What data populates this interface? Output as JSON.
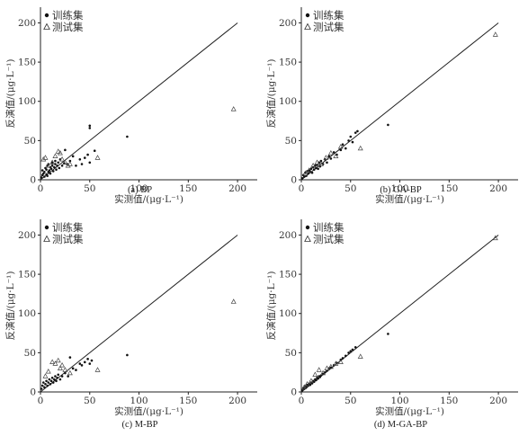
{
  "chart_data": [
    {
      "type": "scatter",
      "caption": "(a) BP",
      "xlabel": "实测值/(μg·L⁻¹)",
      "ylabel": "反演值/(μg·L⁻¹)",
      "xlim": [
        0,
        220
      ],
      "ylim": [
        0,
        220
      ],
      "xticks": [
        "0",
        "50",
        "100",
        "150",
        "200"
      ],
      "yticks": [
        "0",
        "50",
        "100",
        "150",
        "200"
      ],
      "reference_line": [
        [
          0,
          0
        ],
        [
          200,
          200
        ]
      ],
      "legend": {
        "position": "top-left",
        "entries": [
          "训练集",
          "测试集"
        ]
      },
      "series": [
        {
          "name": "训练集",
          "marker": "dot",
          "points": [
            [
              1,
              3
            ],
            [
              2,
              6
            ],
            [
              2,
              12
            ],
            [
              3,
              8
            ],
            [
              4,
              4
            ],
            [
              4,
              10
            ],
            [
              5,
              15
            ],
            [
              6,
              7
            ],
            [
              6,
              13
            ],
            [
              7,
              5
            ],
            [
              7,
              18
            ],
            [
              8,
              10
            ],
            [
              8,
              20
            ],
            [
              9,
              12
            ],
            [
              10,
              8
            ],
            [
              10,
              16
            ],
            [
              11,
              14
            ],
            [
              12,
              18
            ],
            [
              12,
              22
            ],
            [
              13,
              11
            ],
            [
              14,
              16
            ],
            [
              15,
              20
            ],
            [
              15,
              24
            ],
            [
              16,
              13
            ],
            [
              17,
              18
            ],
            [
              18,
              22
            ],
            [
              19,
              15
            ],
            [
              20,
              26
            ],
            [
              22,
              18
            ],
            [
              24,
              21
            ],
            [
              25,
              38
            ],
            [
              27,
              20
            ],
            [
              30,
              24
            ],
            [
              33,
              30
            ],
            [
              36,
              18
            ],
            [
              40,
              26
            ],
            [
              42,
              20
            ],
            [
              45,
              28
            ],
            [
              48,
              32
            ],
            [
              50,
              22
            ],
            [
              50,
              66
            ],
            [
              50,
              69
            ],
            [
              55,
              37
            ],
            [
              88,
              55
            ]
          ]
        },
        {
          "name": "测试集",
          "marker": "triangle",
          "points": [
            [
              3,
              26
            ],
            [
              5,
              28
            ],
            [
              8,
              18
            ],
            [
              12,
              22
            ],
            [
              15,
              30
            ],
            [
              18,
              36
            ],
            [
              20,
              34
            ],
            [
              22,
              26
            ],
            [
              25,
              22
            ],
            [
              28,
              18
            ],
            [
              30,
              20
            ],
            [
              58,
              28
            ],
            [
              196,
              90
            ]
          ]
        }
      ]
    },
    {
      "type": "scatter",
      "caption": "(b) GA-BP",
      "xlabel": "实测值/(μg·L⁻¹)",
      "ylabel": "反演值/(μg·L⁻¹)",
      "xlim": [
        0,
        220
      ],
      "ylim": [
        0,
        220
      ],
      "xticks": [
        "0",
        "50",
        "100",
        "150",
        "200"
      ],
      "yticks": [
        "0",
        "50",
        "100",
        "150",
        "200"
      ],
      "reference_line": [
        [
          0,
          0
        ],
        [
          200,
          200
        ]
      ],
      "legend": {
        "position": "top-left",
        "entries": [
          "训练集",
          "测试集"
        ]
      },
      "series": [
        {
          "name": "训练集",
          "marker": "dot",
          "points": [
            [
              1,
              2
            ],
            [
              2,
              6
            ],
            [
              3,
              4
            ],
            [
              4,
              9
            ],
            [
              5,
              5
            ],
            [
              6,
              11
            ],
            [
              7,
              8
            ],
            [
              8,
              12
            ],
            [
              9,
              10
            ],
            [
              10,
              14
            ],
            [
              11,
              9
            ],
            [
              12,
              16
            ],
            [
              13,
              13
            ],
            [
              14,
              18
            ],
            [
              15,
              15
            ],
            [
              16,
              19
            ],
            [
              17,
              14
            ],
            [
              18,
              22
            ],
            [
              19,
              17
            ],
            [
              20,
              24
            ],
            [
              22,
              20
            ],
            [
              24,
              26
            ],
            [
              26,
              22
            ],
            [
              28,
              30
            ],
            [
              30,
              27
            ],
            [
              33,
              35
            ],
            [
              36,
              32
            ],
            [
              40,
              38
            ],
            [
              42,
              45
            ],
            [
              45,
              40
            ],
            [
              48,
              50
            ],
            [
              50,
              55
            ],
            [
              52,
              48
            ],
            [
              55,
              60
            ],
            [
              57,
              62
            ],
            [
              88,
              70
            ]
          ]
        },
        {
          "name": "测试集",
          "marker": "triangle",
          "points": [
            [
              4,
              8
            ],
            [
              8,
              12
            ],
            [
              12,
              18
            ],
            [
              16,
              22
            ],
            [
              20,
              20
            ],
            [
              25,
              28
            ],
            [
              30,
              34
            ],
            [
              35,
              30
            ],
            [
              40,
              42
            ],
            [
              60,
              40
            ],
            [
              197,
              185
            ]
          ]
        }
      ]
    },
    {
      "type": "scatter",
      "caption": "(c) M-BP",
      "xlabel": "实测值/(μg·L⁻¹)",
      "ylabel": "反演值/(μg·L⁻¹)",
      "xlim": [
        0,
        220
      ],
      "ylim": [
        0,
        220
      ],
      "xticks": [
        "0",
        "50",
        "100",
        "150",
        "200"
      ],
      "yticks": [
        "0",
        "50",
        "100",
        "150",
        "200"
      ],
      "reference_line": [
        [
          0,
          0
        ],
        [
          200,
          200
        ]
      ],
      "legend": {
        "position": "top-left",
        "entries": [
          "训练集",
          "测试集"
        ]
      },
      "series": [
        {
          "name": "训练集",
          "marker": "dot",
          "points": [
            [
              1,
              4
            ],
            [
              2,
              8
            ],
            [
              3,
              12
            ],
            [
              4,
              6
            ],
            [
              5,
              10
            ],
            [
              6,
              14
            ],
            [
              7,
              8
            ],
            [
              8,
              12
            ],
            [
              9,
              16
            ],
            [
              10,
              10
            ],
            [
              11,
              14
            ],
            [
              12,
              18
            ],
            [
              13,
              12
            ],
            [
              14,
              16
            ],
            [
              15,
              20
            ],
            [
              16,
              14
            ],
            [
              17,
              18
            ],
            [
              18,
              22
            ],
            [
              20,
              16
            ],
            [
              22,
              20
            ],
            [
              25,
              24
            ],
            [
              28,
              20
            ],
            [
              30,
              44
            ],
            [
              33,
              30
            ],
            [
              36,
              28
            ],
            [
              40,
              36
            ],
            [
              42,
              34
            ],
            [
              45,
              38
            ],
            [
              48,
              42
            ],
            [
              50,
              36
            ],
            [
              52,
              40
            ],
            [
              88,
              47
            ]
          ]
        },
        {
          "name": "测试集",
          "marker": "triangle",
          "points": [
            [
              5,
              20
            ],
            [
              8,
              26
            ],
            [
              12,
              38
            ],
            [
              15,
              36
            ],
            [
              18,
              40
            ],
            [
              20,
              30
            ],
            [
              22,
              34
            ],
            [
              25,
              28
            ],
            [
              30,
              24
            ],
            [
              58,
              28
            ],
            [
              196,
              115
            ]
          ]
        }
      ]
    },
    {
      "type": "scatter",
      "caption": "(d) M-GA-BP",
      "xlabel": "实测值/(μg·L⁻¹)",
      "ylabel": "反演值/(μg·L⁻¹)",
      "xlim": [
        0,
        220
      ],
      "ylim": [
        0,
        220
      ],
      "xticks": [
        "0",
        "50",
        "100",
        "150",
        "200"
      ],
      "yticks": [
        "0",
        "50",
        "100",
        "150",
        "200"
      ],
      "reference_line": [
        [
          0,
          0
        ],
        [
          200,
          200
        ]
      ],
      "legend": {
        "position": "top-left",
        "entries": [
          "训练集",
          "测试集"
        ]
      },
      "series": [
        {
          "name": "训练集",
          "marker": "dot",
          "points": [
            [
              1,
              2
            ],
            [
              2,
              5
            ],
            [
              3,
              4
            ],
            [
              4,
              7
            ],
            [
              5,
              6
            ],
            [
              6,
              9
            ],
            [
              7,
              8
            ],
            [
              8,
              10
            ],
            [
              9,
              9
            ],
            [
              10,
              12
            ],
            [
              11,
              11
            ],
            [
              12,
              14
            ],
            [
              13,
              13
            ],
            [
              14,
              16
            ],
            [
              15,
              15
            ],
            [
              16,
              18
            ],
            [
              17,
              17
            ],
            [
              18,
              20
            ],
            [
              19,
              19
            ],
            [
              20,
              21
            ],
            [
              22,
              23
            ],
            [
              24,
              25
            ],
            [
              26,
              27
            ],
            [
              28,
              30
            ],
            [
              30,
              31
            ],
            [
              33,
              34
            ],
            [
              36,
              37
            ],
            [
              40,
              41
            ],
            [
              42,
              43
            ],
            [
              45,
              46
            ],
            [
              48,
              50
            ],
            [
              50,
              52
            ],
            [
              52,
              54
            ],
            [
              55,
              57
            ],
            [
              88,
              74
            ]
          ]
        },
        {
          "name": "测试集",
          "marker": "triangle",
          "points": [
            [
              3,
              6
            ],
            [
              6,
              10
            ],
            [
              10,
              14
            ],
            [
              14,
              22
            ],
            [
              18,
              28
            ],
            [
              22,
              24
            ],
            [
              26,
              30
            ],
            [
              30,
              32
            ],
            [
              35,
              36
            ],
            [
              40,
              38
            ],
            [
              60,
              45
            ],
            [
              197,
              196
            ]
          ]
        }
      ]
    }
  ]
}
